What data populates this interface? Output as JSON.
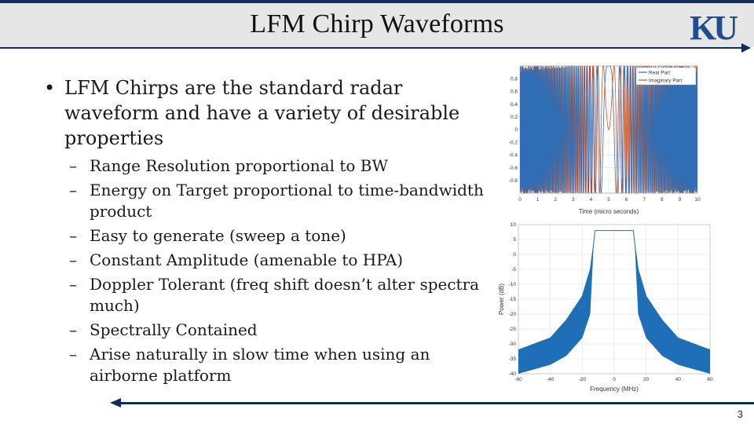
{
  "slide": {
    "title": "LFM Chirp Waveforms",
    "logo_text": "KU",
    "page_number": "3",
    "accent_color": "#0f2d5a",
    "logo_color": "#1f4e8c"
  },
  "content": {
    "main_bullet": "LFM Chirps are the standard radar waveform and have a variety of desirable properties",
    "sub_bullets": [
      "Range Resolution proportional to BW",
      "Energy on Target proportional to time-bandwidth product",
      "Easy to generate (sweep a tone)",
      "Constant Amplitude (amenable to HPA)",
      "Doppler Tolerant (freq shift doesn’t alter spectra much)",
      "Spectrally Contained",
      "Arise naturally in slow time when using an airborne platform"
    ]
  },
  "chart_data": [
    {
      "type": "line",
      "xlabel": "Time (micro seconds)",
      "ylabel": "",
      "xlim": [
        0,
        10
      ],
      "ylim": [
        -1,
        1
      ],
      "x_ticks": [
        "0",
        "1",
        "2",
        "3",
        "4",
        "5",
        "6",
        "7",
        "8",
        "9",
        "10"
      ],
      "y_ticks": [
        "0.8",
        "0.6",
        "0.4",
        "0.2",
        "0",
        "-0.2",
        "-0.4",
        "-0.6",
        "-0.8"
      ],
      "grid": true,
      "legend_position": "top-right",
      "chirp": {
        "center_time": 5,
        "rate": 5.5
      },
      "series": [
        {
          "name": "Real Part",
          "part": "real",
          "color": "#2f6db5"
        },
        {
          "name": "Imaginary Part",
          "part": "imag",
          "color": "#d9531e"
        }
      ]
    },
    {
      "type": "area",
      "xlabel": "Frequency (MHz)",
      "ylabel": "Power (dB)",
      "xlim": [
        -60,
        60
      ],
      "ylim": [
        -40,
        10
      ],
      "x_ticks": [
        -60,
        -40,
        -20,
        0,
        20,
        40,
        60
      ],
      "y_ticks": [
        10,
        5,
        0,
        -5,
        -10,
        -15,
        -20,
        -25,
        -30,
        -35,
        -40
      ],
      "grid": true,
      "color": "#1f6fb8",
      "upper_envelope": [
        [
          -60,
          -32
        ],
        [
          -40,
          -28
        ],
        [
          -30,
          -22
        ],
        [
          -20,
          -14
        ],
        [
          -15,
          -5
        ],
        [
          -13,
          3
        ],
        [
          -12,
          8
        ],
        [
          0,
          8
        ],
        [
          12,
          8
        ],
        [
          13,
          3
        ],
        [
          15,
          -5
        ],
        [
          20,
          -14
        ],
        [
          30,
          -22
        ],
        [
          40,
          -28
        ],
        [
          60,
          -32
        ]
      ],
      "lower_envelope": [
        [
          -60,
          -40
        ],
        [
          -40,
          -37
        ],
        [
          -30,
          -34
        ],
        [
          -20,
          -28
        ],
        [
          -15,
          -20
        ],
        [
          -13,
          2
        ],
        [
          -12,
          8
        ],
        [
          0,
          8
        ],
        [
          12,
          8
        ],
        [
          13,
          2
        ],
        [
          15,
          -20
        ],
        [
          20,
          -28
        ],
        [
          30,
          -34
        ],
        [
          40,
          -37
        ],
        [
          60,
          -40
        ]
      ]
    }
  ]
}
